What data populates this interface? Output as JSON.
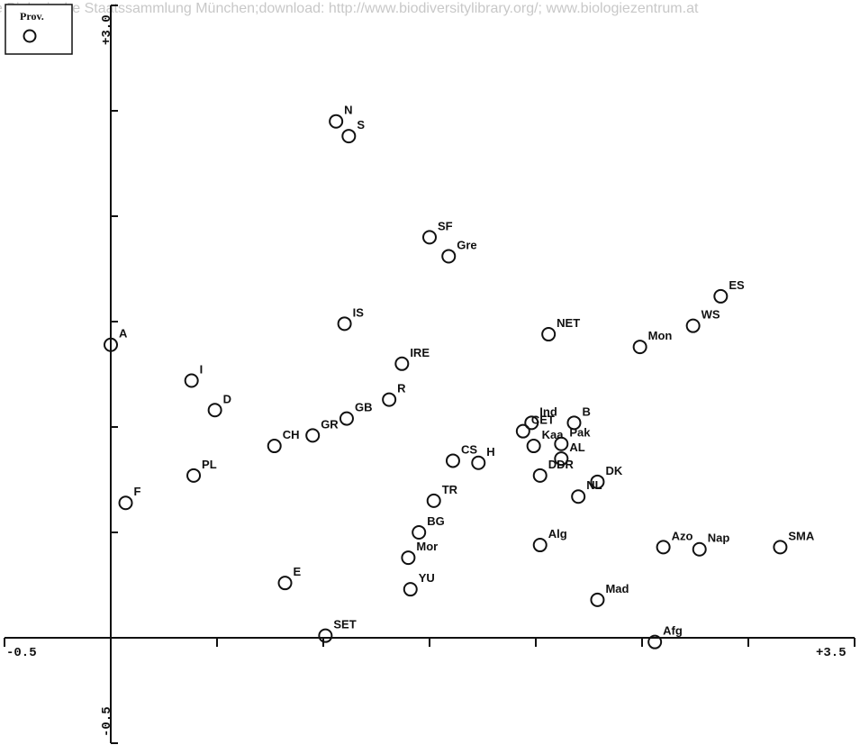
{
  "watermark": "e Biologische Staatssammlung München;download: http://www.biodiversitylibrary.org/; www.biologiezentrum.at",
  "legend": {
    "title": "Prov."
  },
  "chart_data": {
    "type": "scatter",
    "xlim": [
      -0.5,
      3.5
    ],
    "ylim": [
      -0.5,
      3.0
    ],
    "x_tick_labels": {
      "min": "-0.5",
      "max": "+3.5"
    },
    "y_tick_labels": {
      "min": "-0.5",
      "max": "+3.0"
    },
    "grid": false,
    "legend_position": "top-left",
    "points": [
      {
        "label": "N",
        "x": 1.06,
        "y": 2.45
      },
      {
        "label": "S",
        "x": 1.12,
        "y": 2.38
      },
      {
        "label": "SF",
        "x": 1.5,
        "y": 1.9
      },
      {
        "label": "Gre",
        "x": 1.59,
        "y": 1.81
      },
      {
        "label": "IS",
        "x": 1.1,
        "y": 1.49
      },
      {
        "label": "A",
        "x": 0.0,
        "y": 1.39
      },
      {
        "label": "NET",
        "x": 2.06,
        "y": 1.44
      },
      {
        "label": "Mon",
        "x": 2.49,
        "y": 1.38
      },
      {
        "label": "WS",
        "x": 2.74,
        "y": 1.48
      },
      {
        "label": "ES",
        "x": 2.87,
        "y": 1.62
      },
      {
        "label": "IRE",
        "x": 1.37,
        "y": 1.3
      },
      {
        "label": "I",
        "x": 0.38,
        "y": 1.22
      },
      {
        "label": "D",
        "x": 0.49,
        "y": 1.08
      },
      {
        "label": "R",
        "x": 1.31,
        "y": 1.13
      },
      {
        "label": "GB",
        "x": 1.11,
        "y": 1.04
      },
      {
        "label": "CH",
        "x": 0.77,
        "y": 0.91
      },
      {
        "label": "GR",
        "x": 0.95,
        "y": 0.96
      },
      {
        "label": "CET",
        "x": 1.94,
        "y": 0.98
      },
      {
        "label": "Ind",
        "x": 1.98,
        "y": 1.02
      },
      {
        "label": "B",
        "x": 2.18,
        "y": 1.02
      },
      {
        "label": "Pak",
        "x": 2.12,
        "y": 0.92
      },
      {
        "label": "CS",
        "x": 1.61,
        "y": 0.84
      },
      {
        "label": "H",
        "x": 1.73,
        "y": 0.83
      },
      {
        "label": "Kaa",
        "x": 1.99,
        "y": 0.91
      },
      {
        "label": "AL",
        "x": 2.12,
        "y": 0.85
      },
      {
        "label": "PL",
        "x": 0.39,
        "y": 0.77
      },
      {
        "label": "DDR",
        "x": 2.02,
        "y": 0.77
      },
      {
        "label": "DK",
        "x": 2.29,
        "y": 0.74
      },
      {
        "label": "F",
        "x": 0.07,
        "y": 0.64
      },
      {
        "label": "TR",
        "x": 1.52,
        "y": 0.65
      },
      {
        "label": "NL",
        "x": 2.2,
        "y": 0.67
      },
      {
        "label": "BG",
        "x": 1.45,
        "y": 0.5
      },
      {
        "label": "Alg",
        "x": 2.02,
        "y": 0.44
      },
      {
        "label": "Azo",
        "x": 2.6,
        "y": 0.43
      },
      {
        "label": "Nap",
        "x": 2.77,
        "y": 0.42
      },
      {
        "label": "SMA",
        "x": 3.15,
        "y": 0.43
      },
      {
        "label": "Mor",
        "x": 1.4,
        "y": 0.38
      },
      {
        "label": "E",
        "x": 0.82,
        "y": 0.26
      },
      {
        "label": "YU",
        "x": 1.41,
        "y": 0.23
      },
      {
        "label": "Mad",
        "x": 2.29,
        "y": 0.18
      },
      {
        "label": "SET",
        "x": 1.01,
        "y": 0.01
      },
      {
        "label": "Afg",
        "x": 2.56,
        "y": -0.02
      }
    ]
  }
}
